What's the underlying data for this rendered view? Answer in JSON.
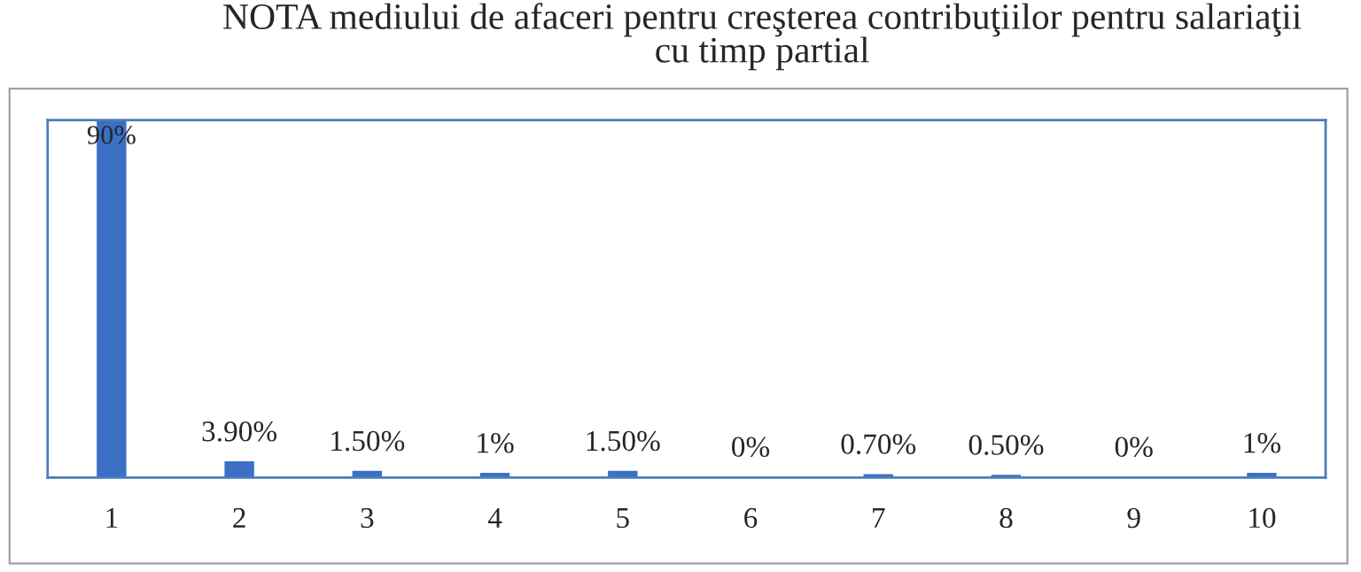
{
  "chart_data": {
    "type": "bar",
    "title": "NOTA mediului de afaceri pentru creşterea contribuţiilor pentru salariaţii\ncu timp partial",
    "categories": [
      "1",
      "2",
      "3",
      "4",
      "5",
      "6",
      "7",
      "8",
      "9",
      "10"
    ],
    "values": [
      90,
      3.9,
      1.5,
      1,
      1.5,
      0,
      0.7,
      0.5,
      0,
      1
    ],
    "value_labels": [
      "90%",
      "3.90%",
      "1.50%",
      "1%",
      "1.50%",
      "0%",
      "0.70%",
      "0.50%",
      "0%",
      "1%"
    ],
    "color": "#3b70c4",
    "grid": false,
    "tick_labels": "x"
  }
}
